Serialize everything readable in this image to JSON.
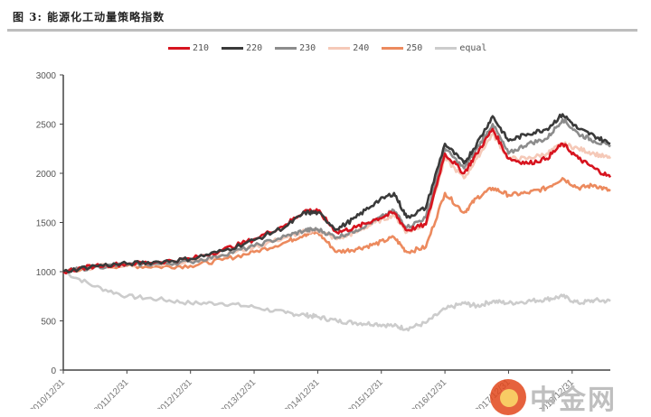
{
  "figure": {
    "title": "图 3:  能源化工动量策略指数"
  },
  "legend": [
    {
      "label": "210",
      "color": "#d7141f"
    },
    {
      "label": "220",
      "color": "#3a3a3a"
    },
    {
      "label": "230",
      "color": "#8c8c8c"
    },
    {
      "label": "240",
      "color": "#f5c9b8"
    },
    {
      "label": "250",
      "color": "#ec8a5e"
    },
    {
      "label": "equal",
      "color": "#cccccc"
    }
  ],
  "watermark": {
    "text": "中金网"
  },
  "chart_data": {
    "type": "line",
    "title": "图 3: 能源化工动量策略指数",
    "xlabel": "",
    "ylabel": "",
    "ylim": [
      0,
      3000
    ],
    "yticks": [
      0,
      500,
      1000,
      1500,
      2000,
      2500,
      3000
    ],
    "xtick_labels": [
      "2010/12/31",
      "2011/12/31",
      "2012/12/31",
      "2013/12/31",
      "2014/12/31",
      "2015/12/31",
      "2016/12/31",
      "2017/12/31",
      "2018/12/31"
    ],
    "grid": false,
    "legend_position": "top",
    "x": [
      2010.0,
      2010.5,
      2011.0,
      2011.5,
      2012.0,
      2012.5,
      2013.0,
      2013.5,
      2013.8,
      2014.0,
      2014.3,
      2014.6,
      2014.9,
      2015.2,
      2015.4,
      2015.7,
      2016.0,
      2016.3,
      2016.5,
      2016.75,
      2017.0,
      2017.3,
      2017.6,
      2017.85,
      2018.1,
      2018.35,
      2018.6
    ],
    "series": [
      {
        "name": "210",
        "values": [
          1000,
          1060,
          1080,
          1100,
          1130,
          1220,
          1330,
          1480,
          1620,
          1620,
          1400,
          1450,
          1530,
          1600,
          1420,
          1480,
          2200,
          2000,
          2200,
          2450,
          2150,
          2100,
          2150,
          2300,
          2150,
          2050,
          1960
        ]
      },
      {
        "name": "220",
        "values": [
          1000,
          1060,
          1080,
          1100,
          1130,
          1210,
          1320,
          1460,
          1600,
          1600,
          1430,
          1550,
          1700,
          1800,
          1550,
          1650,
          2300,
          2100,
          2300,
          2580,
          2330,
          2400,
          2450,
          2600,
          2450,
          2380,
          2300
        ]
      },
      {
        "name": "230",
        "values": [
          1000,
          1050,
          1070,
          1080,
          1100,
          1170,
          1260,
          1360,
          1420,
          1430,
          1350,
          1420,
          1520,
          1620,
          1450,
          1550,
          2250,
          2050,
          2250,
          2500,
          2200,
          2300,
          2350,
          2550,
          2400,
          2330,
          2270
        ]
      },
      {
        "name": "240",
        "values": [
          1000,
          1050,
          1070,
          1080,
          1100,
          1170,
          1250,
          1350,
          1410,
          1420,
          1330,
          1400,
          1500,
          1580,
          1400,
          1480,
          2150,
          1950,
          2150,
          2400,
          2150,
          2150,
          2200,
          2300,
          2250,
          2200,
          2150
        ]
      },
      {
        "name": "250",
        "values": [
          1000,
          1050,
          1060,
          1050,
          1060,
          1120,
          1200,
          1300,
          1380,
          1400,
          1200,
          1230,
          1280,
          1350,
          1200,
          1250,
          1800,
          1600,
          1750,
          1850,
          1780,
          1800,
          1850,
          1950,
          1850,
          1880,
          1820
        ]
      },
      {
        "name": "equal",
        "values": [
          1000,
          850,
          750,
          720,
          680,
          680,
          640,
          580,
          560,
          540,
          500,
          480,
          470,
          450,
          420,
          480,
          620,
          680,
          650,
          700,
          680,
          700,
          720,
          750,
          680,
          710,
          700
        ]
      }
    ]
  }
}
